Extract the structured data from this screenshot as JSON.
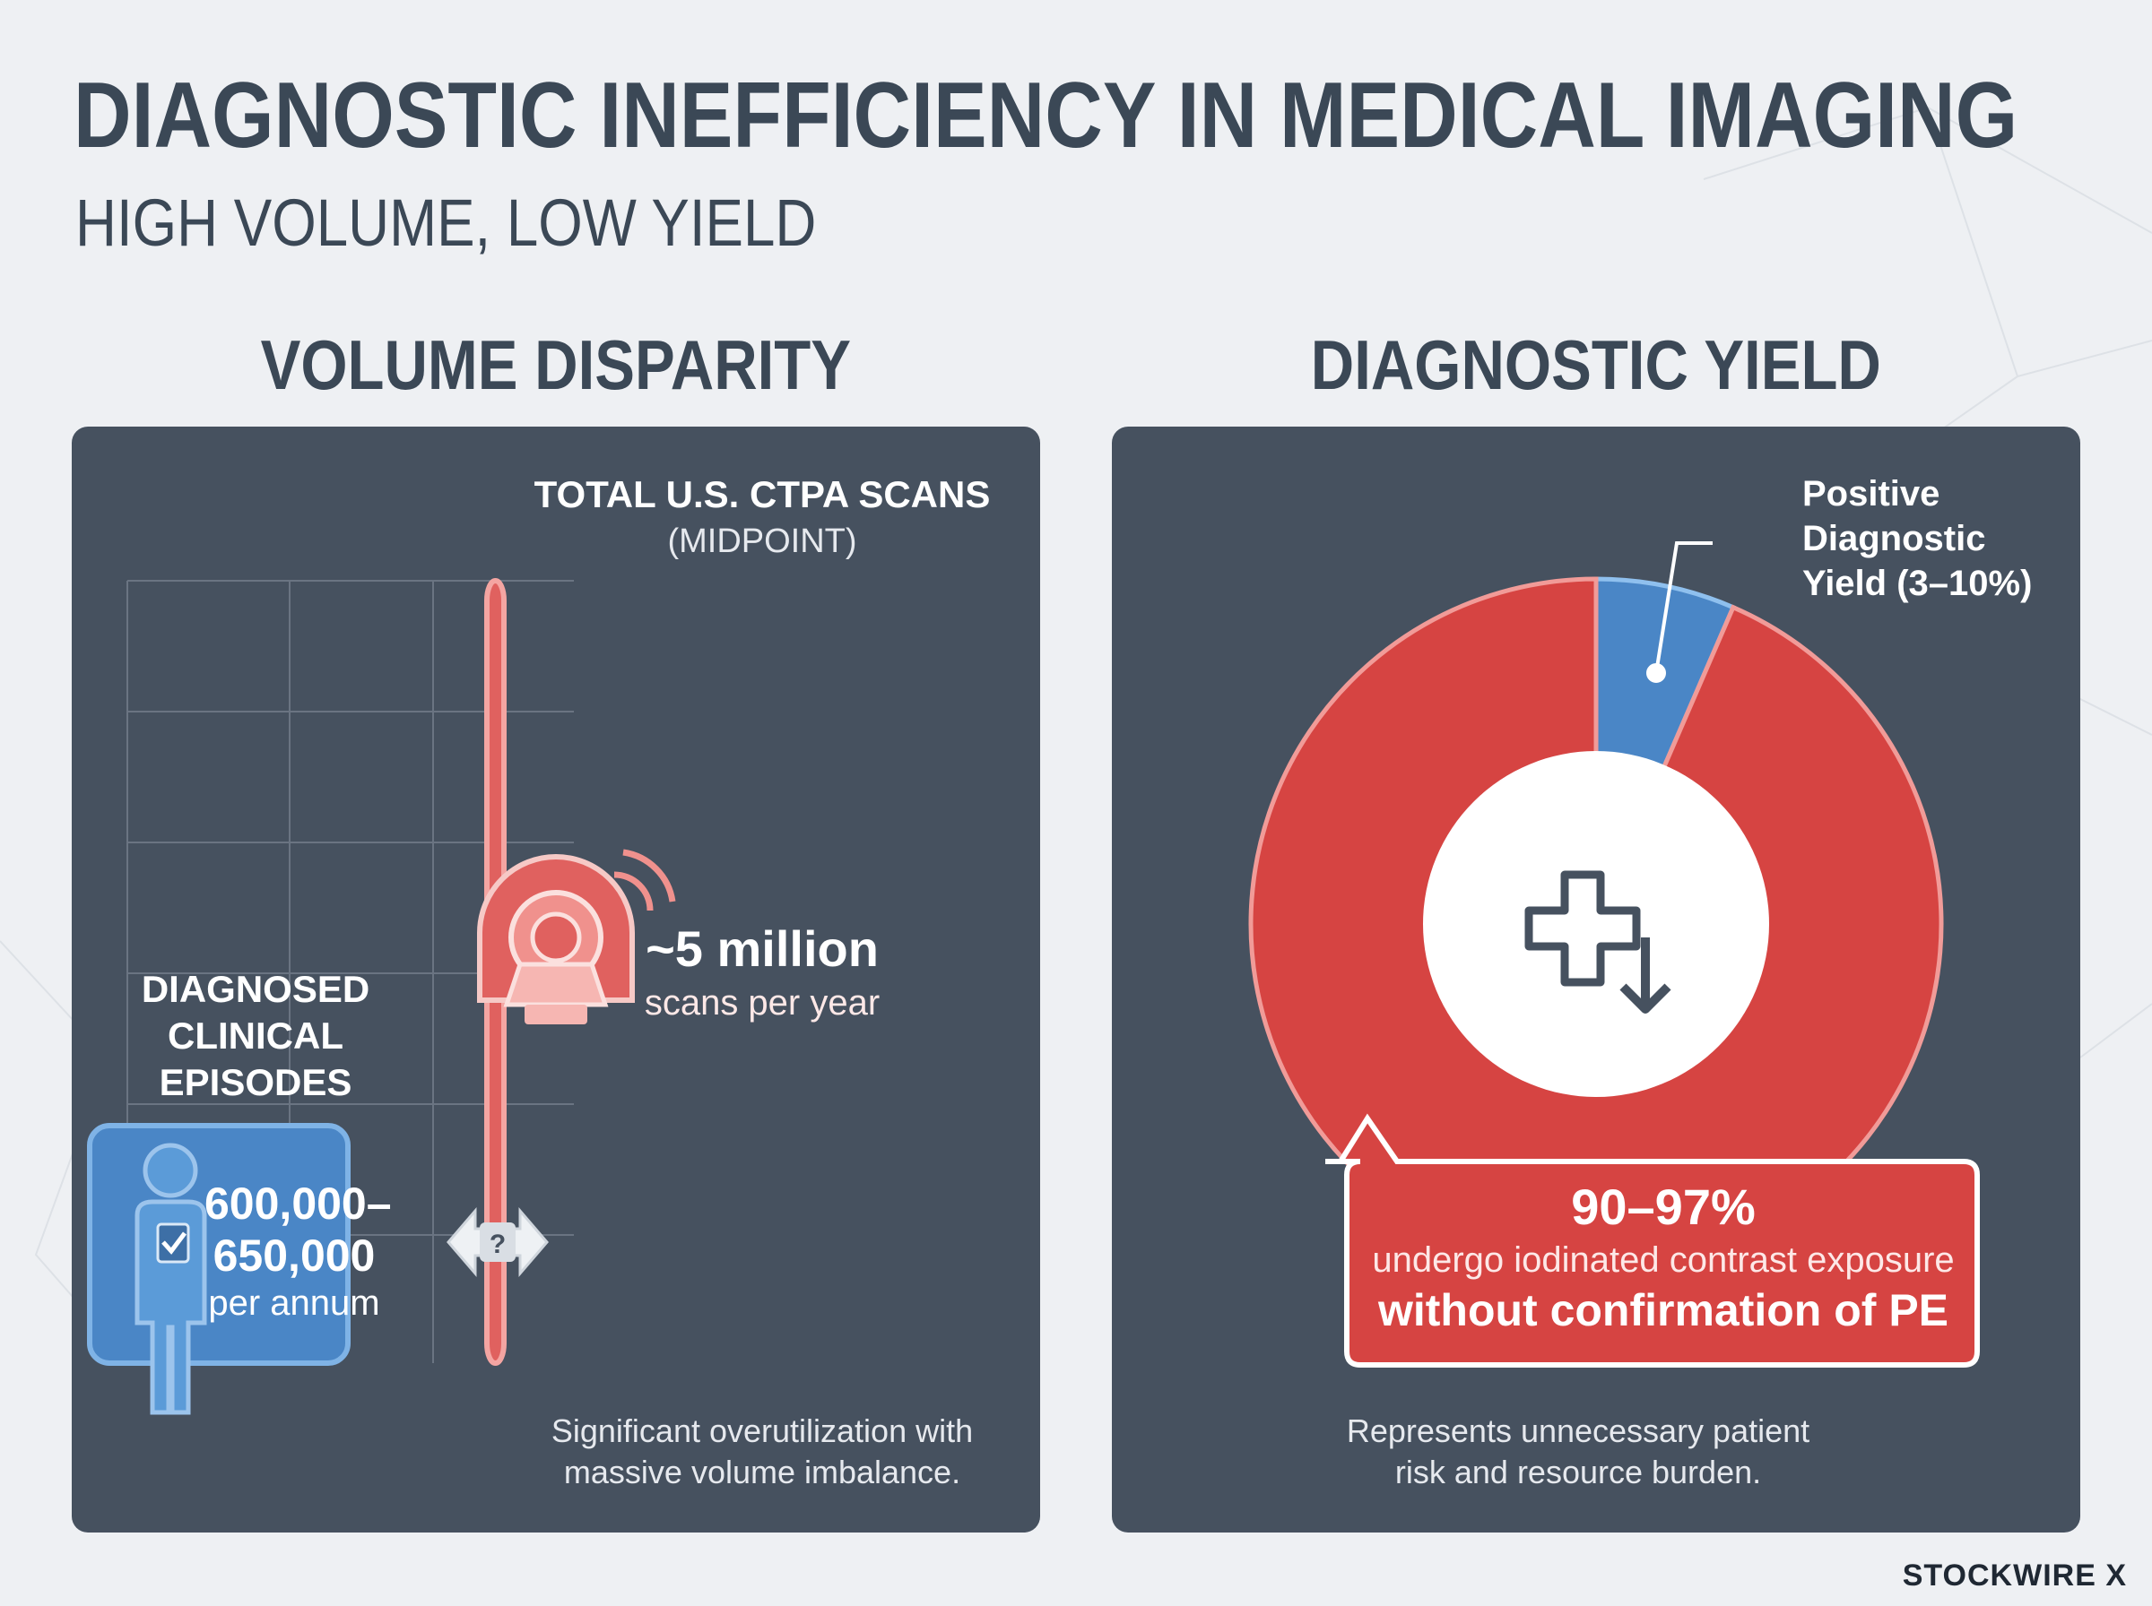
{
  "header": {
    "title": "DIAGNOSTIC INEFFICIENCY IN MEDICAL IMAGING",
    "subtitle": "HIGH VOLUME, LOW YIELD"
  },
  "volume_section": {
    "heading": "VOLUME DISPARITY",
    "caption_line1": "Significant overutilization with",
    "caption_line2": "massive volume imbalance."
  },
  "yield_section": {
    "heading": "DIAGNOSTIC YIELD",
    "caption_line1": "Represents unnecessary patient",
    "caption_line2": "risk and resource burden."
  },
  "logo": "STOCKWIRE X",
  "colors": {
    "accent_red": "#e0615f",
    "donut_red": "#d64442",
    "accent_blue": "#4a86c6",
    "panel": "#46515f"
  },
  "chart_data": [
    {
      "type": "bar",
      "categories": [
        "DIAGNOSED CLINICAL EPISODES",
        "TOTAL U.S. CTPA SCANS"
      ],
      "values": [
        625000,
        5000000
      ],
      "series_colors": [
        "#4a86c6",
        "#e0615f"
      ],
      "bars": [
        {
          "label_lines": [
            "DIAGNOSED",
            "CLINICAL",
            "EPISODES"
          ],
          "value_lines": [
            "600,000–",
            "650,000"
          ],
          "unit": "per annum",
          "icon": "person-checklist-icon",
          "color": "#4a86c6"
        },
        {
          "label_lines": [
            "TOTAL U.S. CTPA SCANS",
            "(MIDPOINT)"
          ],
          "value_lines": [
            "~5 million"
          ],
          "unit": "scans per year",
          "icon": "ct-scanner-icon",
          "color": "#e0615f"
        }
      ],
      "comparison_badge": "?",
      "grid": true
    },
    {
      "type": "pie",
      "style": "donut",
      "slices": [
        {
          "label_lines": [
            "Positive",
            "Diagnostic",
            "Yield (3–10%)"
          ],
          "value": 6.5,
          "color": "#4a86c6"
        },
        {
          "label_lines": [
            "90–97%",
            "undergo iodinated contrast exposure",
            "without confirmation of PE"
          ],
          "value": 93.5,
          "color": "#d64442"
        }
      ],
      "center_icon": "medical-cross-down-arrow-icon"
    }
  ]
}
